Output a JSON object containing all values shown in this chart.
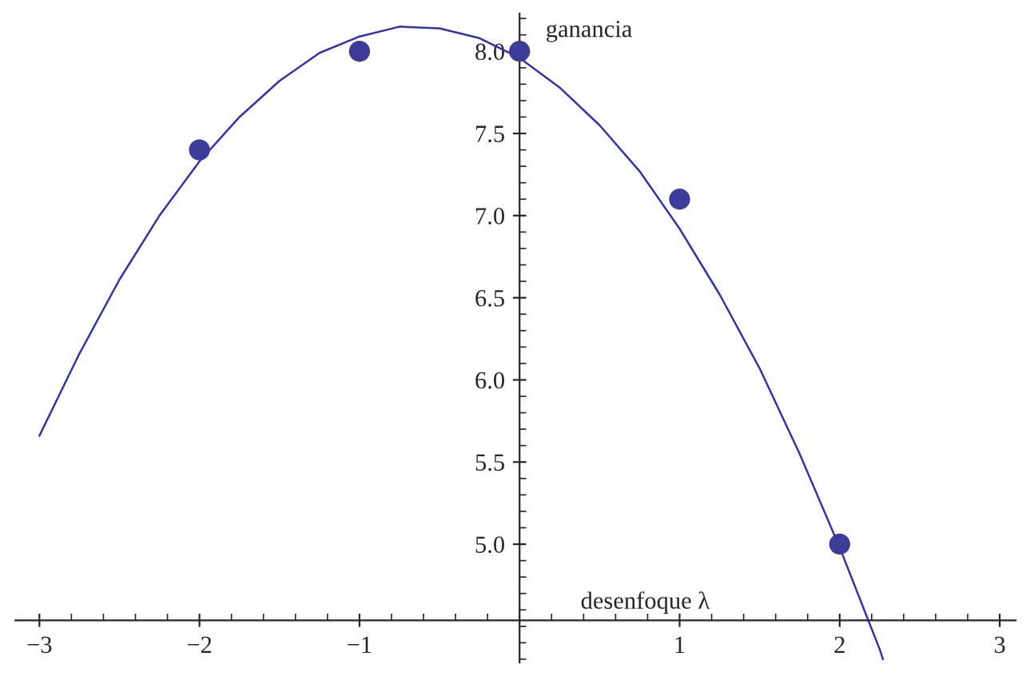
{
  "chart_data": {
    "type": "scatter",
    "xlabel": "desenfoque λ",
    "ylabel": "ganancia",
    "xlim": [
      -3.15,
      3.1
    ],
    "ylim": [
      4.28,
      8.23
    ],
    "xticks": [
      -3,
      -2,
      -1,
      1,
      2,
      3
    ],
    "yticks": [
      {
        "value": 5,
        "label": "5.0"
      },
      {
        "value": 5.5,
        "label": "5.5"
      },
      {
        "value": 6,
        "label": "6.0"
      },
      {
        "value": 6.5,
        "label": "6.5"
      },
      {
        "value": 7,
        "label": "7.0"
      },
      {
        "value": 7.5,
        "label": "7.5"
      },
      {
        "value": 8,
        "label": "8.0"
      }
    ],
    "grid": false,
    "legend": false,
    "series": [
      {
        "color": "#3d3d99",
        "x": [
          -2,
          -1,
          0,
          1,
          2
        ],
        "values": [
          7.4,
          8.0,
          8.0,
          7.1,
          5.0
        ]
      },
      {
        "type": "line",
        "color": "#3333aa",
        "x": [
          -3,
          -2.75,
          -2.5,
          -2.25,
          -2,
          -1.75,
          -1.5,
          -1.25,
          -1,
          -0.75,
          -0.5,
          -0.25,
          0,
          0.25,
          0.5,
          0.75,
          1,
          1.25,
          1.5,
          1.75,
          2,
          2.25,
          2.27
        ],
        "values": [
          5.66,
          6.16,
          6.61,
          7.0,
          7.33,
          7.6,
          7.82,
          7.99,
          8.09,
          8.15,
          8.14,
          8.08,
          7.96,
          7.78,
          7.55,
          7.27,
          6.92,
          6.52,
          6.07,
          5.55,
          4.98,
          4.36,
          4.3
        ]
      }
    ]
  }
}
